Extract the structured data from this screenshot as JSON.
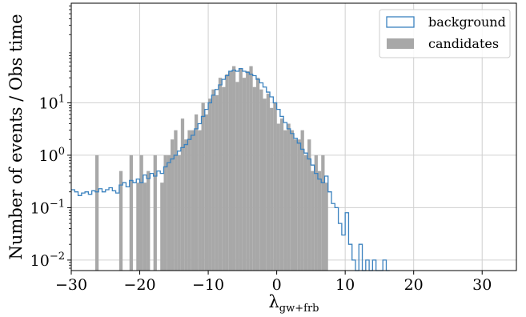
{
  "chart_data": {
    "type": "bar",
    "xlabel": "λ",
    "xlabel_subscript": "gw+frb",
    "ylabel": "Number of events / Obs time",
    "xlim": [
      -30,
      35
    ],
    "ylim_log10": [
      -2.2,
      2.9
    ],
    "yscale": "log",
    "grid": true,
    "legend_position": "top-right",
    "bin_width": 0.5,
    "x_ticks": [
      {
        "value": -30,
        "label": "−30"
      },
      {
        "value": -20,
        "label": "−20"
      },
      {
        "value": -10,
        "label": "−10"
      },
      {
        "value": 0,
        "label": "0"
      },
      {
        "value": 10,
        "label": "10"
      },
      {
        "value": 20,
        "label": "20"
      },
      {
        "value": 30,
        "label": "30"
      }
    ],
    "y_ticks": [
      {
        "exp": -2,
        "base": "10",
        "sup": "−2"
      },
      {
        "exp": -1,
        "base": "10",
        "sup": "−1"
      },
      {
        "exp": 0,
        "base": "10",
        "sup": "0"
      },
      {
        "exp": 1,
        "base": "10",
        "sup": "1"
      }
    ],
    "series": [
      {
        "name": "background",
        "kind": "step",
        "color": "#3b82bf",
        "x": [
          -30,
          -29.5,
          -29,
          -28.5,
          -28,
          -27.5,
          -27,
          -26.5,
          -26,
          -25.5,
          -25,
          -24.5,
          -24,
          -23.5,
          -23,
          -22.5,
          -22,
          -21.5,
          -21,
          -20.5,
          -20,
          -19.5,
          -19,
          -18.5,
          -18,
          -17.5,
          -17,
          -16.5,
          -16,
          -15.5,
          -15,
          -14.5,
          -14,
          -13.5,
          -13,
          -12.5,
          -12,
          -11.5,
          -11,
          -10.5,
          -10,
          -9.5,
          -9,
          -8.5,
          -8,
          -7.5,
          -7,
          -6.5,
          -6,
          -5.5,
          -5,
          -4.5,
          -4,
          -3.5,
          -3,
          -2.5,
          -2,
          -1.5,
          -1,
          -0.5,
          0,
          0.5,
          1,
          1.5,
          2,
          2.5,
          3,
          3.5,
          4,
          4.5,
          5,
          5.5,
          6,
          6.5,
          7,
          7.5,
          8,
          8.5,
          9,
          9.5,
          10,
          10.5,
          11,
          11.5,
          12,
          12.5,
          13,
          13.5,
          14,
          14.5,
          15,
          15.5,
          16
        ],
        "values": [
          0.22,
          0.2,
          0.17,
          0.19,
          0.2,
          0.18,
          0.21,
          0.2,
          0.23,
          0.2,
          0.22,
          0.24,
          0.21,
          0.19,
          0.27,
          0.3,
          0.25,
          0.33,
          0.3,
          0.35,
          0.3,
          0.42,
          0.36,
          0.45,
          0.4,
          0.5,
          0.45,
          0.6,
          0.72,
          0.85,
          1.0,
          1.2,
          1.4,
          1.6,
          2.0,
          2.4,
          3.2,
          4.0,
          5.5,
          7.5,
          10,
          14,
          18,
          22,
          28,
          33,
          40,
          42,
          40,
          45,
          40,
          38,
          35,
          33,
          28,
          24,
          20,
          16,
          13,
          10,
          7.5,
          5.5,
          4.2,
          3.2,
          2.6,
          2.1,
          1.7,
          1.3,
          1.1,
          0.85,
          0.65,
          0.45,
          0.35,
          0.3,
          0.4,
          0.2,
          0.12,
          0.1,
          0.05,
          0.03,
          0.08,
          0.02,
          0.01,
          0.0,
          0.02,
          0.0,
          0.01,
          0.0,
          0.01,
          0.0,
          0.0,
          0.01,
          0.0
        ]
      },
      {
        "name": "candidates",
        "kind": "bars",
        "color": "#a8a8a8",
        "x": [
          -26.5,
          -23,
          -21.5,
          -20.5,
          -20,
          -19.5,
          -19,
          -18,
          -17,
          -16.5,
          -16,
          -15.5,
          -15,
          -14.5,
          -14,
          -13.5,
          -13,
          -12.5,
          -12,
          -11.5,
          -11,
          -10.5,
          -10,
          -9.5,
          -9,
          -8.5,
          -8,
          -7.5,
          -7,
          -6.5,
          -6,
          -5.5,
          -5,
          -4.5,
          -4,
          -3.5,
          -3,
          -2.5,
          -2,
          -1.5,
          -1,
          -0.5,
          0,
          0.5,
          1,
          1.5,
          2,
          2.5,
          3,
          3.5,
          4,
          4.5,
          5,
          5.5,
          6,
          6.5,
          7
        ],
        "values": [
          1,
          0.5,
          1,
          0.3,
          1,
          0.3,
          0.5,
          1,
          0.3,
          1,
          1,
          2,
          3,
          1,
          5,
          2,
          3,
          3,
          6,
          3,
          10,
          6,
          12,
          18,
          14,
          30,
          20,
          35,
          40,
          50,
          25,
          45,
          30,
          40,
          50,
          20,
          30,
          18,
          12,
          15,
          8,
          10,
          4,
          5,
          3,
          4,
          3,
          2,
          2,
          3,
          1,
          2,
          0.5,
          1,
          0.5,
          1,
          0.3
        ]
      }
    ]
  }
}
